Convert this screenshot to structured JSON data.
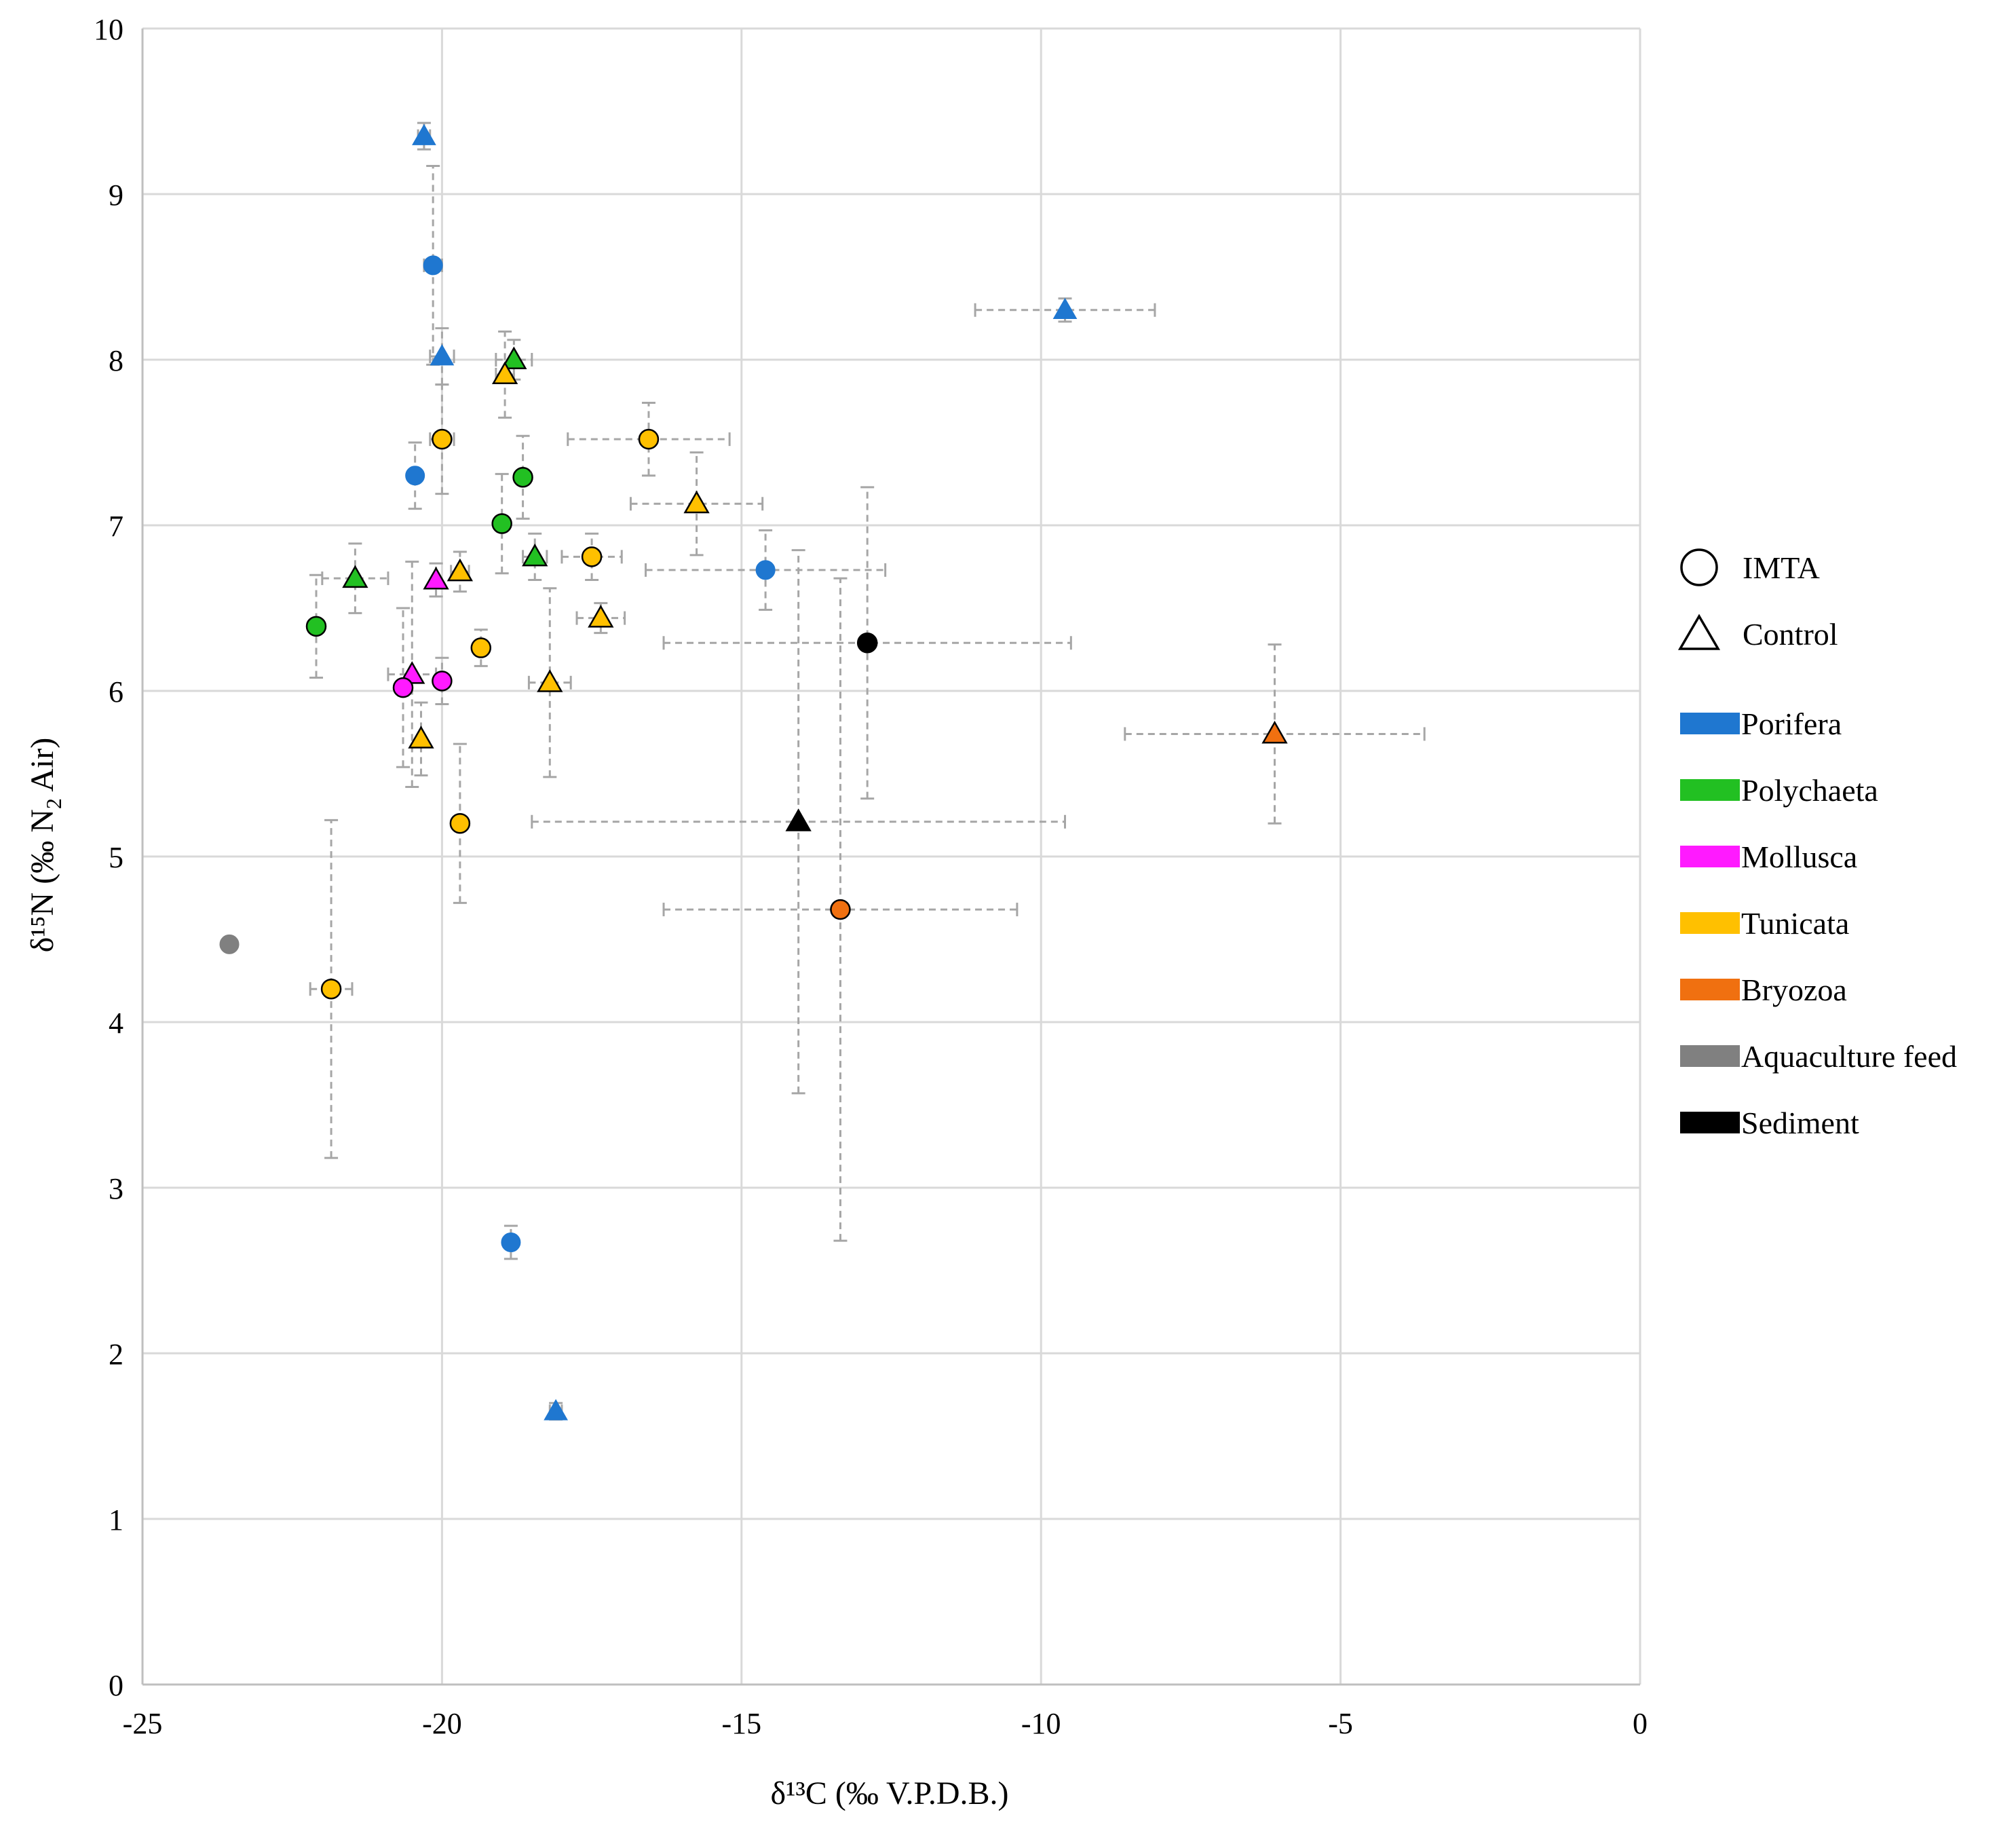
{
  "chart_data": {
    "type": "scatter",
    "title": "",
    "xlabel": "δ¹³C (‰ V.P.D.B.)",
    "ylabel_main": "δ¹⁵N (‰ N",
    "ylabel_sub": "2",
    "ylabel_tail": " Air)",
    "xlim": [
      -25,
      0
    ],
    "ylim": [
      0,
      10
    ],
    "x_ticks": [
      -25,
      -20,
      -15,
      -10,
      -5,
      0
    ],
    "y_ticks": [
      0,
      1,
      2,
      3,
      4,
      5,
      6,
      7,
      8,
      9,
      10
    ],
    "x_tick_labels": [
      "-25",
      "-20",
      "-15",
      "-10",
      "-5",
      "0"
    ],
    "y_tick_labels": [
      "0",
      "1",
      "2",
      "3",
      "4",
      "5",
      "6",
      "7",
      "8",
      "9",
      "10"
    ],
    "grid": true,
    "legend_position": "right",
    "legend_shapes": [
      {
        "label": "IMTA",
        "shape": "circle"
      },
      {
        "label": "Control",
        "shape": "triangle"
      }
    ],
    "legend_groups": [
      {
        "label": "Porifera",
        "color": "#1F77D0"
      },
      {
        "label": "Polychaeta",
        "color": "#22C022"
      },
      {
        "label": "Mollusca",
        "color": "#FF1AFF"
      },
      {
        "label": "Tunicata",
        "color": "#FFC000"
      },
      {
        "label": "Bryozoa",
        "color": "#F07010"
      },
      {
        "label": "Aquaculture feed",
        "color": "#808080"
      },
      {
        "label": "Sediment",
        "color": "#000000"
      }
    ],
    "points": [
      {
        "group": "Porifera",
        "site": "Control",
        "x": -20.3,
        "y": 9.35,
        "xerr": 0.1,
        "yerr": 0.08
      },
      {
        "group": "Porifera",
        "site": "IMTA",
        "x": -20.15,
        "y": 8.57,
        "xerr": 0.15,
        "yerr": 0.6
      },
      {
        "group": "Porifera",
        "site": "Control",
        "x": -20.0,
        "y": 8.02,
        "xerr": 0.2,
        "yerr": 0.17
      },
      {
        "group": "Porifera",
        "site": "IMTA",
        "x": -20.45,
        "y": 7.3,
        "xerr": 0.0,
        "yerr": 0.2
      },
      {
        "group": "Porifera",
        "site": "IMTA",
        "x": -14.6,
        "y": 6.73,
        "xerr": 2.0,
        "yerr": 0.24
      },
      {
        "group": "Porifera",
        "site": "Control",
        "x": -9.6,
        "y": 8.3,
        "xerr": 1.5,
        "yerr": 0.07
      },
      {
        "group": "Porifera",
        "site": "IMTA",
        "x": -18.85,
        "y": 2.67,
        "xerr": 0.1,
        "yerr": 0.1
      },
      {
        "group": "Porifera",
        "site": "Control",
        "x": -18.1,
        "y": 1.65,
        "xerr": 0.1,
        "yerr": 0.05
      },
      {
        "group": "Polychaeta",
        "site": "Control",
        "x": -18.8,
        "y": 8.0,
        "xerr": 0.3,
        "yerr": 0.12
      },
      {
        "group": "Polychaeta",
        "site": "IMTA",
        "x": -18.65,
        "y": 7.29,
        "xerr": 0.0,
        "yerr": 0.25
      },
      {
        "group": "Polychaeta",
        "site": "IMTA",
        "x": -19.0,
        "y": 7.01,
        "xerr": 0.0,
        "yerr": 0.3
      },
      {
        "group": "Polychaeta",
        "site": "Control",
        "x": -18.45,
        "y": 6.81,
        "xerr": 0.2,
        "yerr": 0.14
      },
      {
        "group": "Polychaeta",
        "site": "Control",
        "x": -21.45,
        "y": 6.68,
        "xerr": 0.55,
        "yerr": 0.21
      },
      {
        "group": "Polychaeta",
        "site": "IMTA",
        "x": -22.1,
        "y": 6.39,
        "xerr": 0.0,
        "yerr": 0.31
      },
      {
        "group": "Mollusca",
        "site": "Control",
        "x": -20.1,
        "y": 6.67,
        "xerr": 0.0,
        "yerr": 0.1
      },
      {
        "group": "Mollusca",
        "site": "Control",
        "x": -20.5,
        "y": 6.1,
        "xerr": 0.4,
        "yerr": 0.68
      },
      {
        "group": "Mollusca",
        "site": "IMTA",
        "x": -20.65,
        "y": 6.02,
        "xerr": 0.0,
        "yerr": 0.48
      },
      {
        "group": "Mollusca",
        "site": "IMTA",
        "x": -20.0,
        "y": 6.06,
        "xerr": 0.0,
        "yerr": 0.14
      },
      {
        "group": "Tunicata",
        "site": "Control",
        "x": -18.95,
        "y": 7.91,
        "xerr": 0.15,
        "yerr": 0.26
      },
      {
        "group": "Tunicata",
        "site": "IMTA",
        "x": -20.0,
        "y": 7.52,
        "xerr": 0.2,
        "yerr": 0.33
      },
      {
        "group": "Tunicata",
        "site": "IMTA",
        "x": -16.55,
        "y": 7.52,
        "xerr": 1.35,
        "yerr": 0.22
      },
      {
        "group": "Tunicata",
        "site": "Control",
        "x": -15.75,
        "y": 7.13,
        "xerr": 1.1,
        "yerr": 0.31
      },
      {
        "group": "Tunicata",
        "site": "Control",
        "x": -19.7,
        "y": 6.72,
        "xerr": 0.15,
        "yerr": 0.12
      },
      {
        "group": "Tunicata",
        "site": "IMTA",
        "x": -17.5,
        "y": 6.81,
        "xerr": 0.5,
        "yerr": 0.14
      },
      {
        "group": "Tunicata",
        "site": "Control",
        "x": -17.35,
        "y": 6.44,
        "xerr": 0.4,
        "yerr": 0.09
      },
      {
        "group": "Tunicata",
        "site": "IMTA",
        "x": -19.35,
        "y": 6.26,
        "xerr": 0.1,
        "yerr": 0.11
      },
      {
        "group": "Tunicata",
        "site": "Control",
        "x": -18.2,
        "y": 6.05,
        "xerr": 0.35,
        "yerr": 0.57
      },
      {
        "group": "Tunicata",
        "site": "Control",
        "x": -20.35,
        "y": 5.71,
        "xerr": 0.0,
        "yerr": 0.22
      },
      {
        "group": "Tunicata",
        "site": "IMTA",
        "x": -19.7,
        "y": 5.2,
        "xerr": 0.0,
        "yerr": 0.48
      },
      {
        "group": "Tunicata",
        "site": "IMTA",
        "x": -21.85,
        "y": 4.2,
        "xerr": 0.35,
        "yerr": 1.02
      },
      {
        "group": "Bryozoa",
        "site": "Control",
        "x": -6.1,
        "y": 5.74,
        "xerr": 2.5,
        "yerr": 0.54
      },
      {
        "group": "Bryozoa",
        "site": "IMTA",
        "x": -13.35,
        "y": 4.68,
        "xerr": 2.95,
        "yerr": 2.0
      },
      {
        "group": "Aquaculture feed",
        "site": "IMTA",
        "x": -23.55,
        "y": 4.47,
        "xerr": 0.0,
        "yerr": 0.0
      },
      {
        "group": "Sediment",
        "site": "IMTA",
        "x": -12.9,
        "y": 6.29,
        "xerr": 3.4,
        "yerr": 0.94
      },
      {
        "group": "Sediment",
        "site": "Control",
        "x": -14.05,
        "y": 5.21,
        "xerr": 4.45,
        "yerr": 1.64
      }
    ]
  }
}
